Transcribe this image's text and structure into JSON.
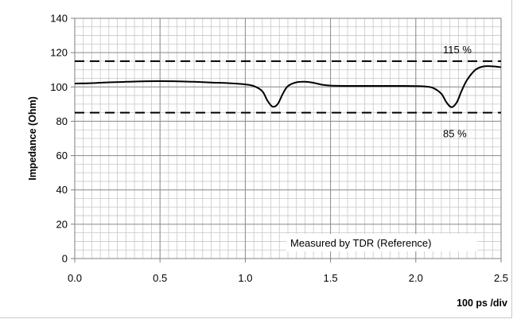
{
  "chart_data": {
    "type": "line",
    "title": "",
    "xlabel": "100 ps /div",
    "ylabel": "Impedance (Ohm)",
    "xlim": [
      0,
      2.5
    ],
    "ylim": [
      0,
      140
    ],
    "x_ticks": [
      "0.0",
      "0.5",
      "1.0",
      "1.5",
      "2.0",
      "2.5"
    ],
    "y_ticks": [
      "0",
      "20",
      "40",
      "60",
      "80",
      "100",
      "120",
      "140"
    ],
    "grid": true,
    "reference_lines": [
      {
        "label": "115 %",
        "y": 115,
        "style": "dashed"
      },
      {
        "label": "85 %",
        "y": 85,
        "style": "dashed"
      }
    ],
    "annotation": "Measured by TDR (Reference)",
    "series": [
      {
        "x": [
          0.0,
          0.1,
          0.2,
          0.3,
          0.4,
          0.5,
          0.6,
          0.7,
          0.8,
          0.9,
          1.0,
          1.05,
          1.1,
          1.13,
          1.16,
          1.19,
          1.22,
          1.25,
          1.3,
          1.35,
          1.4,
          1.45,
          1.5,
          1.6,
          1.7,
          1.8,
          1.9,
          2.0,
          2.05,
          2.1,
          2.15,
          2.18,
          2.21,
          2.24,
          2.27,
          2.3,
          2.35,
          2.4,
          2.45,
          2.5
        ],
        "y": [
          102,
          102.2,
          102.7,
          103,
          103.3,
          103.4,
          103.3,
          103,
          102.6,
          102.2,
          101.5,
          100.5,
          97.5,
          92,
          88.5,
          90,
          96,
          100.5,
          102.7,
          103,
          102.4,
          101.3,
          100.8,
          100.6,
          100.6,
          100.6,
          100.6,
          100.5,
          100.3,
          99.5,
          96,
          91,
          88.2,
          91,
          98,
          104,
          110,
          112,
          112,
          111.5
        ]
      }
    ]
  }
}
